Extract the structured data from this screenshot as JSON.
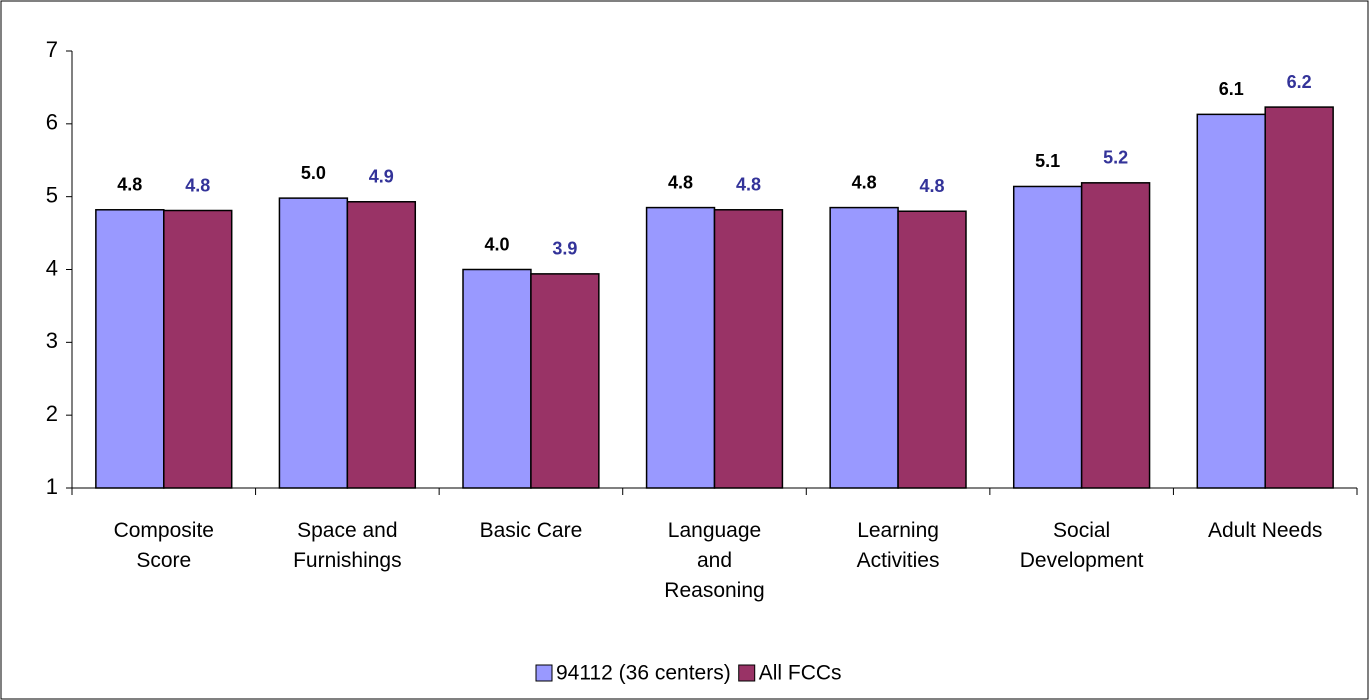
{
  "chart_data": {
    "type": "bar",
    "categories": [
      "Composite Score",
      "Space and Furnishings",
      "Basic Care",
      "Language and Reasoning",
      "Learning Activities",
      "Social Development",
      "Adult Needs"
    ],
    "series": [
      {
        "name": "94112 (36 centers)",
        "color": "#9999ff",
        "label_color": "#000000",
        "values": [
          4.82,
          4.98,
          4.0,
          4.85,
          4.85,
          5.14,
          6.13
        ],
        "value_labels": [
          "4.8",
          "5.0",
          "4.0",
          "4.8",
          "4.8",
          "5.1",
          "6.1"
        ]
      },
      {
        "name": "All FCCs",
        "color": "#993366",
        "label_color": "#333399",
        "values": [
          4.81,
          4.93,
          3.94,
          4.82,
          4.8,
          5.19,
          6.23
        ],
        "value_labels": [
          "4.8",
          "4.9",
          "3.9",
          "4.8",
          "4.8",
          "5.2",
          "6.2"
        ]
      }
    ],
    "ylim": [
      1,
      7
    ],
    "yticks": [
      1,
      2,
      3,
      4,
      5,
      6,
      7
    ],
    "grid": false,
    "legend": "bottom"
  }
}
